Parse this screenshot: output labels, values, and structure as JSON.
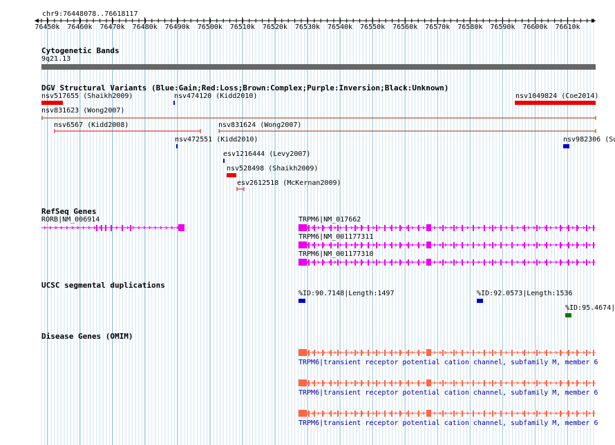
{
  "window_title": "chr9:76448078..76618117",
  "ruler_ticks": [
    "76450k",
    "76460k",
    "76470k",
    "76480k",
    "76490k",
    "76500k",
    "76510k",
    "76520k",
    "76530k",
    "76540k",
    "76550k",
    "76560k",
    "76570k",
    "76580k",
    "76590k",
    "76600k",
    "76610k"
  ],
  "cyto": {
    "title": "Cytogenetic Bands",
    "band": "9q21.13"
  },
  "dgv": {
    "title": "DGV Structural Variants (Blue:Gain;Red:Loss;Brown:Complex;Purple:Inversion;Black:Unknown)",
    "items": [
      {
        "label": "nsv517655 (Shaikh2009)",
        "color": "#ee0000"
      },
      {
        "label": "nsv474120 (Kidd2010)",
        "color": "#0000dd"
      },
      {
        "label": "nsv1049824 (Coe2014)",
        "color": "#ee0000"
      },
      {
        "label": "nsv831623 (Wong2007)",
        "color": "#993300"
      },
      {
        "label": "nsv6567 (Kidd2008)",
        "color": "#ee0000"
      },
      {
        "label": "nsv831624 (Wong2007)",
        "color": "#993300"
      },
      {
        "label": "nsv472551 (Kidd2010)",
        "color": "#0000dd"
      },
      {
        "label": "nsv982306 (Su",
        "color": "#0000dd"
      },
      {
        "label": "esv1216444 (Levy2007)",
        "color": "#0000dd"
      },
      {
        "label": "nsv528498 (Shaikh2009)",
        "color": "#ee0000"
      },
      {
        "label": "esv2612518 (McKernan2009)",
        "color": "#ee0000"
      }
    ]
  },
  "refseq": {
    "title": "RefSeq Genes",
    "color": "#ee00ee",
    "genes": [
      {
        "label": "RORB|NM_006914"
      },
      {
        "label": "TRPM6|NM_017662"
      },
      {
        "label": "TRPM6|NM_001177311"
      },
      {
        "label": "TRPM6|NM_001177310"
      }
    ]
  },
  "segdup": {
    "title": "UCSC segmental duplications",
    "items": [
      {
        "label": "%ID:90.7148|Length:1497",
        "color": "#0000cc"
      },
      {
        "label": "%ID:92.0573|Length:1536",
        "color": "#0000cc"
      },
      {
        "label": "%ID:95.4674|",
        "color": "#007700"
      }
    ]
  },
  "omim": {
    "title": "Disease Genes (OMIM)",
    "color": "#ff6644",
    "label": "TRPM6|transient receptor potential cation channel, subfamily M, member 6"
  }
}
